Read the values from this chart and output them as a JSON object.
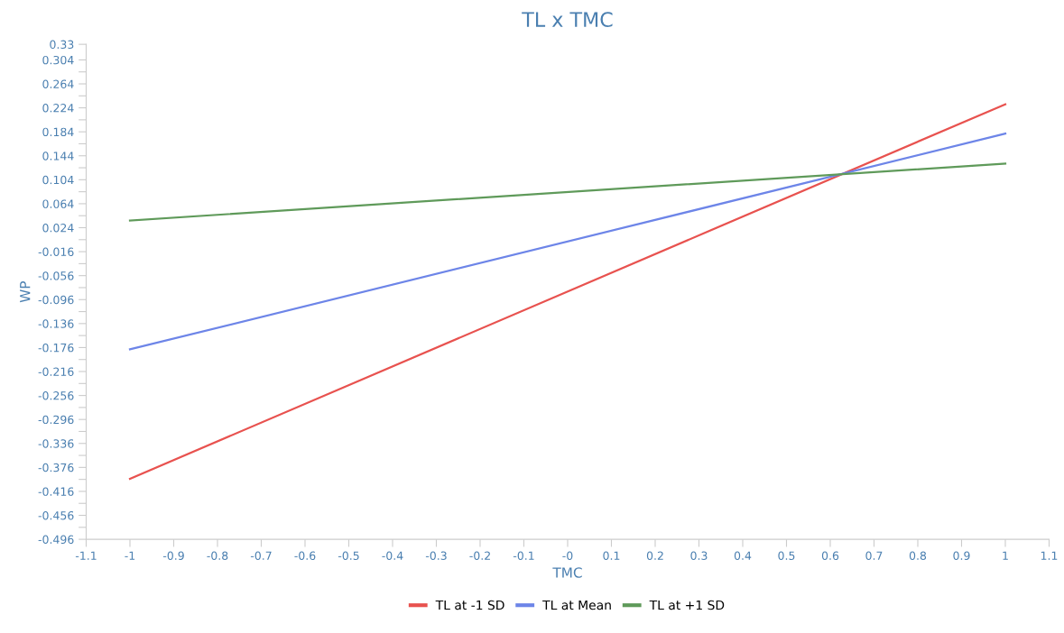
{
  "chart_data": {
    "type": "line",
    "title": "TL x TMC",
    "xlabel": "TMC",
    "ylabel": "WP",
    "x": [
      -1,
      1
    ],
    "series": [
      {
        "name": "TL at -1 SD",
        "color": "#e8524f",
        "values": [
          -0.395,
          0.23
        ]
      },
      {
        "name": "TL at Mean",
        "color": "#6d85e8",
        "values": [
          -0.179,
          0.181
        ]
      },
      {
        "name": "TL at +1 SD",
        "color": "#5f9a5a",
        "values": [
          0.036,
          0.131
        ]
      }
    ],
    "xlim": [
      -1.1,
      1.1
    ],
    "xticks": [
      -1.1,
      -1,
      -0.9,
      -0.8,
      -0.7,
      -0.6,
      -0.5,
      -0.4,
      -0.3,
      -0.2,
      -0.1,
      {
        "value": 0,
        "label": "-0"
      },
      0.1,
      0.2,
      0.3,
      0.4,
      0.5,
      0.6,
      0.7,
      0.8,
      0.9,
      1,
      1.1
    ],
    "ylim": [
      -0.496,
      0.33
    ],
    "yticks": [
      0.33,
      0.304,
      {
        "value": 0.284,
        "label": null
      },
      0.264,
      {
        "value": 0.244,
        "label": null
      },
      0.224,
      {
        "value": 0.204,
        "label": null
      },
      0.184,
      {
        "value": 0.164,
        "label": null
      },
      0.144,
      {
        "value": 0.124,
        "label": null
      },
      0.104,
      {
        "value": 0.084,
        "label": null
      },
      0.064,
      {
        "value": 0.044,
        "label": null
      },
      0.024,
      {
        "value": 0.004,
        "label": null
      },
      -0.016,
      {
        "value": -0.036,
        "label": null
      },
      -0.056,
      {
        "value": -0.076,
        "label": null
      },
      -0.096,
      {
        "value": -0.116,
        "label": null
      },
      -0.136,
      {
        "value": -0.156,
        "label": null
      },
      -0.176,
      {
        "value": -0.196,
        "label": null
      },
      -0.216,
      {
        "value": -0.236,
        "label": null
      },
      -0.256,
      {
        "value": -0.276,
        "label": null
      },
      -0.296,
      {
        "value": -0.316,
        "label": null
      },
      -0.336,
      {
        "value": -0.356,
        "label": null
      },
      -0.376,
      {
        "value": -0.396,
        "label": null
      },
      -0.416,
      {
        "value": -0.436,
        "label": null
      },
      -0.456,
      {
        "value": -0.476,
        "label": null
      },
      -0.496
    ],
    "grid": false,
    "legend": "bottom",
    "marker": "none",
    "line_style": "solid"
  }
}
